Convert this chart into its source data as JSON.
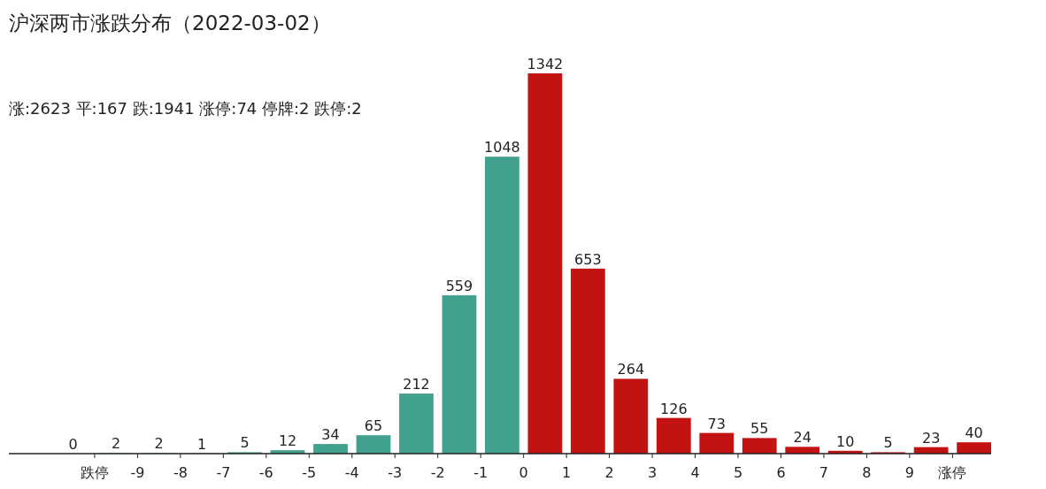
{
  "chart_data": {
    "type": "bar",
    "title": "沪深两市涨跌分布（2022-03-02）",
    "annotations": [
      "涨:2623 平:167 跌:1941 涨停:74 停牌:2 跌停:2"
    ],
    "x": [
      -10.5,
      -9.5,
      -8.5,
      -7.5,
      -6.5,
      -5.5,
      -4.5,
      -3.5,
      -2.5,
      -1.5,
      -0.5,
      0.5,
      1.5,
      2.5,
      3.5,
      4.5,
      5.5,
      6.5,
      7.5,
      8.5,
      9.5,
      10.5
    ],
    "values": [
      0,
      2,
      2,
      1,
      5,
      12,
      34,
      65,
      212,
      559,
      1048,
      1342,
      653,
      264,
      126,
      73,
      55,
      24,
      10,
      5,
      23,
      40
    ],
    "colors": [
      "#42a08e",
      "#42a08e",
      "#42a08e",
      "#42a08e",
      "#42a08e",
      "#42a08e",
      "#42a08e",
      "#42a08e",
      "#42a08e",
      "#42a08e",
      "#42a08e",
      "#c21212",
      "#c21212",
      "#c21212",
      "#c21212",
      "#c21212",
      "#c21212",
      "#c21212",
      "#c21212",
      "#c21212",
      "#c21212",
      "#c21212"
    ],
    "xlim": [
      -12,
      10.9
    ],
    "xticks": [
      {
        "value": -10,
        "label": "跌停"
      },
      -9,
      -8,
      -7,
      -6,
      -5,
      -4,
      -3,
      -2,
      -1,
      0,
      1,
      2,
      3,
      4,
      5,
      6,
      7,
      8,
      9,
      {
        "value": 10,
        "label": "涨停"
      }
    ],
    "data_labels": true
  }
}
